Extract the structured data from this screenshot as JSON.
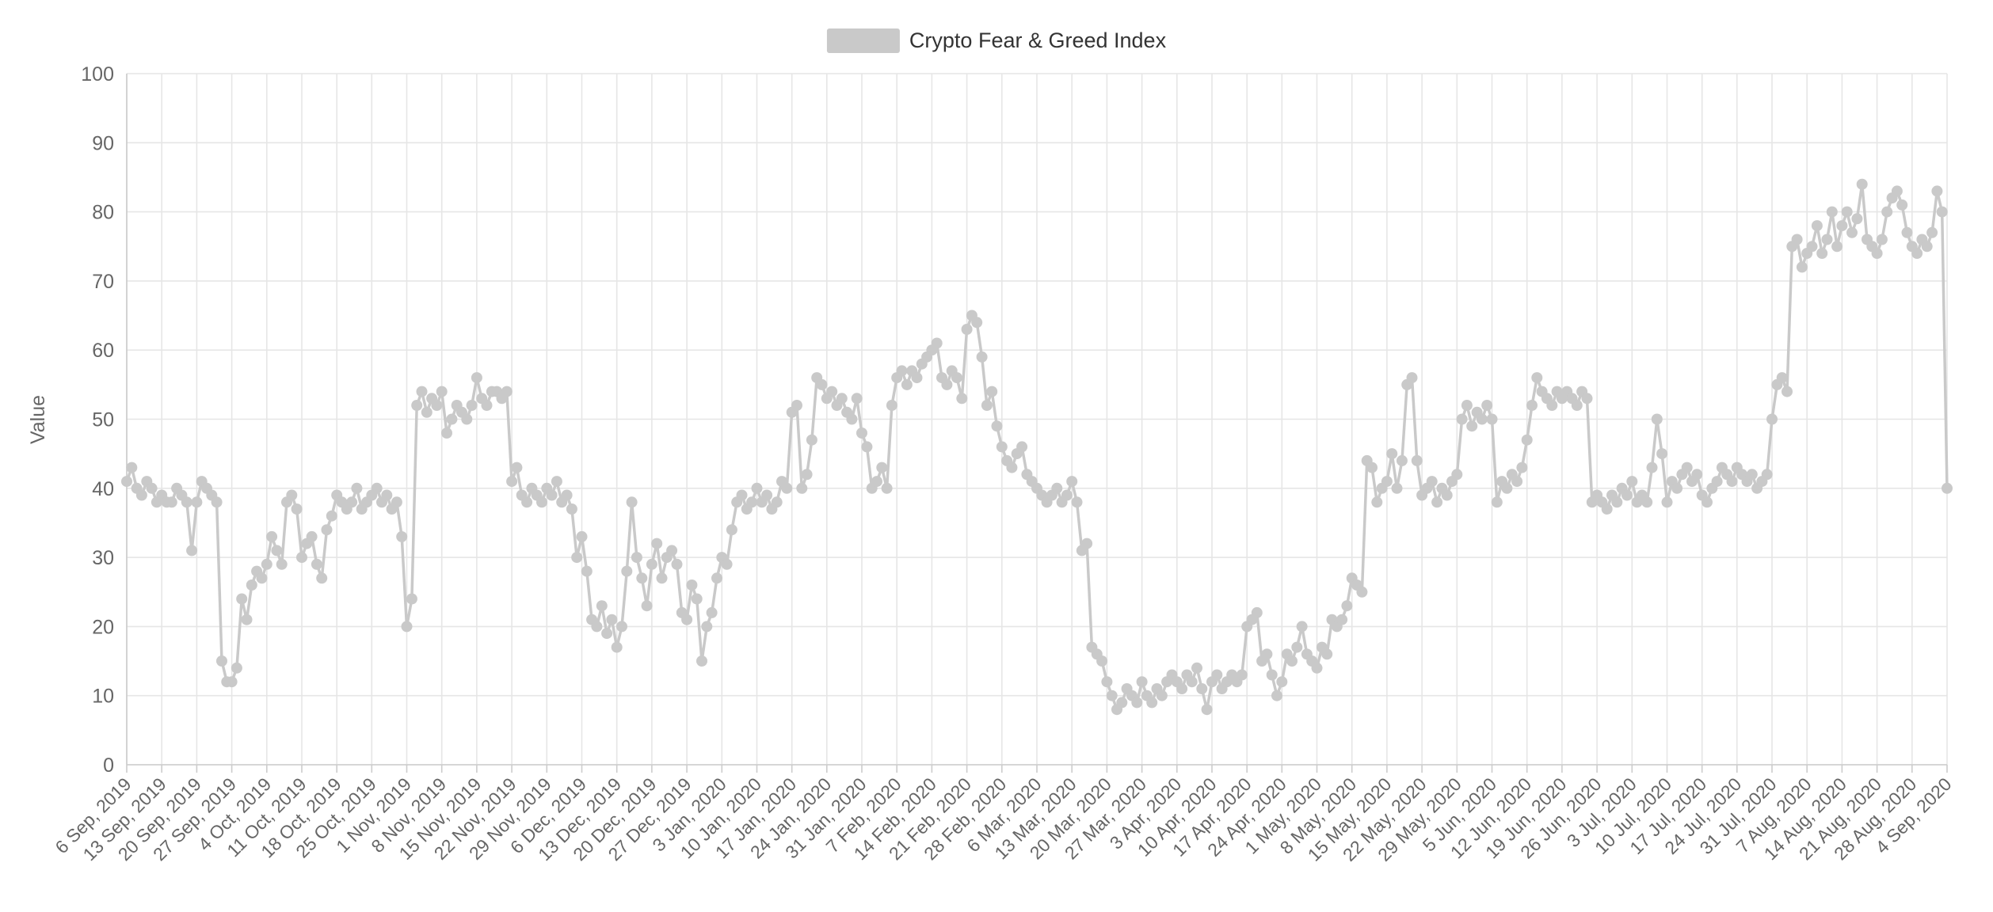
{
  "chart_data": {
    "type": "line",
    "title": "Crypto Fear & Greed Index",
    "xlabel": "",
    "ylabel": "Value",
    "ylim": [
      0,
      100
    ],
    "grid": true,
    "legend_position": "top-center",
    "y_tick_labels": [
      0,
      10,
      20,
      30,
      40,
      50,
      60,
      70,
      80,
      90,
      100
    ],
    "x_tick_every_n_points": 7,
    "x_start_date": "6 Sep, 2019",
    "x_end_date": "4 Sep, 2020",
    "x_tick_labels": [
      "6 Sep, 2019",
      "13 Sep, 2019",
      "20 Sep, 2019",
      "27 Sep, 2019",
      "4 Oct, 2019",
      "11 Oct, 2019",
      "18 Oct, 2019",
      "25 Oct, 2019",
      "1 Nov, 2019",
      "8 Nov, 2019",
      "15 Nov, 2019",
      "22 Nov, 2019",
      "29 Nov, 2019",
      "6 Dec, 2019",
      "13 Dec, 2019",
      "20 Dec, 2019",
      "27 Dec, 2019",
      "3 Jan, 2020",
      "10 Jan, 2020",
      "17 Jan, 2020",
      "24 Jan, 2020",
      "31 Jan, 2020",
      "7 Feb, 2020",
      "14 Feb, 2020",
      "21 Feb, 2020",
      "28 Feb, 2020",
      "6 Mar, 2020",
      "13 Mar, 2020",
      "20 Mar, 2020",
      "27 Mar, 2020",
      "3 Apr, 2020",
      "10 Apr, 2020",
      "17 Apr, 2020",
      "24 Apr, 2020",
      "1 May, 2020",
      "8 May, 2020",
      "15 May, 2020",
      "22 May, 2020",
      "29 May, 2020",
      "5 Jun, 2020",
      "12 Jun, 2020",
      "19 Jun, 2020",
      "26 Jun, 2020",
      "3 Jul, 2020",
      "10 Jul, 2020",
      "17 Jul, 2020",
      "24 Jul, 2020",
      "31 Jul, 2020",
      "7 Aug, 2020",
      "14 Aug, 2020",
      "21 Aug, 2020",
      "28 Aug, 2020",
      "4 Sep, 2020"
    ],
    "series": [
      {
        "name": "Crypto Fear & Greed Index",
        "color": "#c9c9c9",
        "values": [
          41,
          43,
          40,
          39,
          41,
          40,
          38,
          39,
          38,
          38,
          40,
          39,
          38,
          31,
          38,
          41,
          40,
          39,
          38,
          15,
          12,
          12,
          14,
          24,
          21,
          26,
          28,
          27,
          29,
          33,
          31,
          29,
          38,
          39,
          37,
          30,
          32,
          33,
          29,
          27,
          34,
          36,
          39,
          38,
          37,
          38,
          40,
          37,
          38,
          39,
          40,
          38,
          39,
          37,
          38,
          33,
          20,
          24,
          52,
          54,
          51,
          53,
          52,
          54,
          48,
          50,
          52,
          51,
          50,
          52,
          56,
          53,
          52,
          54,
          54,
          53,
          54,
          41,
          43,
          39,
          38,
          40,
          39,
          38,
          40,
          39,
          41,
          38,
          39,
          37,
          30,
          33,
          28,
          21,
          20,
          23,
          19,
          21,
          17,
          20,
          28,
          38,
          30,
          27,
          23,
          29,
          32,
          27,
          30,
          31,
          29,
          22,
          21,
          26,
          24,
          15,
          20,
          22,
          27,
          30,
          29,
          34,
          38,
          39,
          37,
          38,
          40,
          38,
          39,
          37,
          38,
          41,
          40,
          51,
          52,
          40,
          42,
          47,
          56,
          55,
          53,
          54,
          52,
          53,
          51,
          50,
          53,
          48,
          46,
          40,
          41,
          43,
          40,
          52,
          56,
          57,
          55,
          57,
          56,
          58,
          59,
          60,
          61,
          56,
          55,
          57,
          56,
          53,
          63,
          65,
          64,
          59,
          52,
          54,
          49,
          46,
          44,
          43,
          45,
          46,
          42,
          41,
          40,
          39,
          38,
          39,
          40,
          38,
          39,
          41,
          38,
          31,
          32,
          17,
          16,
          15,
          12,
          10,
          8,
          9,
          11,
          10,
          9,
          12,
          10,
          9,
          11,
          10,
          12,
          13,
          12,
          11,
          13,
          12,
          14,
          11,
          8,
          12,
          13,
          11,
          12,
          13,
          12,
          13,
          20,
          21,
          22,
          15,
          16,
          13,
          10,
          12,
          16,
          15,
          17,
          20,
          16,
          15,
          14,
          17,
          16,
          21,
          20,
          21,
          23,
          27,
          26,
          25,
          44,
          43,
          38,
          40,
          41,
          45,
          40,
          44,
          55,
          56,
          44,
          39,
          40,
          41,
          38,
          40,
          39,
          41,
          42,
          50,
          52,
          49,
          51,
          50,
          52,
          50,
          38,
          41,
          40,
          42,
          41,
          43,
          47,
          52,
          56,
          54,
          53,
          52,
          54,
          53,
          54,
          53,
          52,
          54,
          53,
          38,
          39,
          38,
          37,
          39,
          38,
          40,
          39,
          41,
          38,
          39,
          38,
          43,
          50,
          45,
          38,
          41,
          40,
          42,
          43,
          41,
          42,
          39,
          38,
          40,
          41,
          43,
          42,
          41,
          43,
          42,
          41,
          42,
          40,
          41,
          42,
          50,
          55,
          56,
          54,
          75,
          76,
          72,
          74,
          75,
          78,
          74,
          76,
          80,
          75,
          78,
          80,
          77,
          79,
          84,
          76,
          75,
          74,
          76,
          80,
          82,
          83,
          81,
          77,
          75,
          74,
          76,
          75,
          77,
          83,
          80,
          40
        ]
      }
    ],
    "style": {
      "grid_color": "#e6e6e6",
      "axis_line_color": "#cccccc",
      "tick_label_color": "#666666",
      "axis_title_color": "#666666",
      "title_color": "#333333"
    }
  }
}
